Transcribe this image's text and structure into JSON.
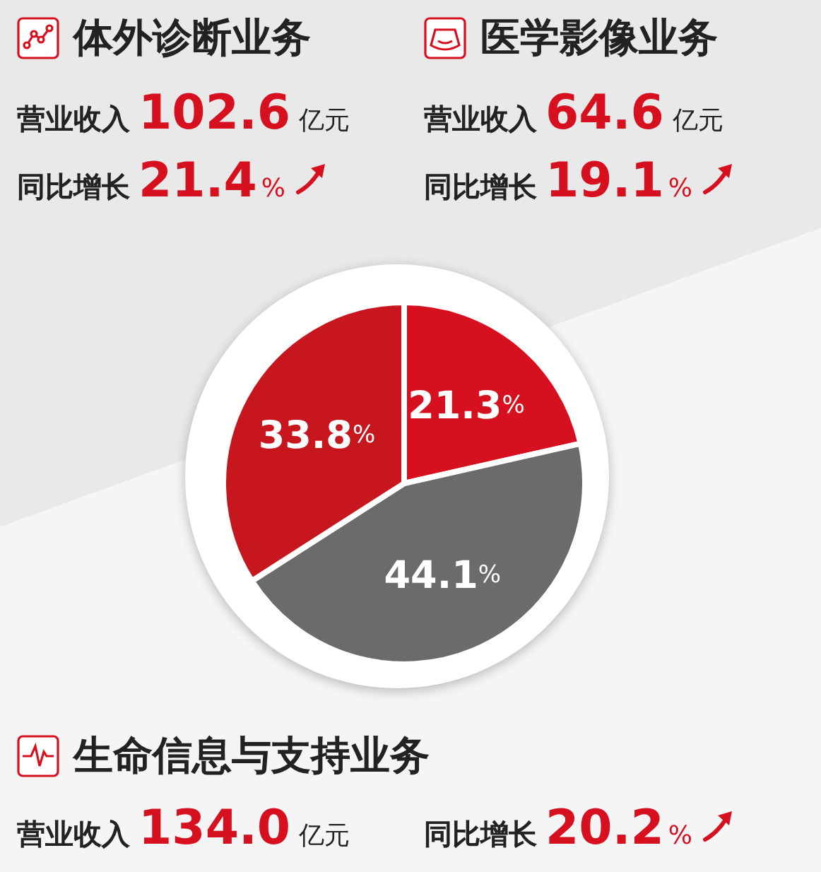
{
  "chart_data": {
    "type": "pie",
    "categories": [
      "医学影像业务",
      "生命信息与支持业务",
      "体外诊断业务"
    ],
    "values": [
      21.3,
      44.1,
      33.8
    ],
    "value_labels": [
      "21.3%",
      "44.1%",
      "33.8%"
    ],
    "colors": [
      "#d7101f",
      "#6b6b6b",
      "#c8161e"
    ],
    "annotations": [
      "营业收入 64.6 亿元",
      "同比增长 19.1%",
      "营业收入134.0 亿元",
      "同比增长 20.2%",
      "营业收入 102.6 亿元",
      "同比增长 21.4%"
    ],
    "legend": "top"
  }
}
